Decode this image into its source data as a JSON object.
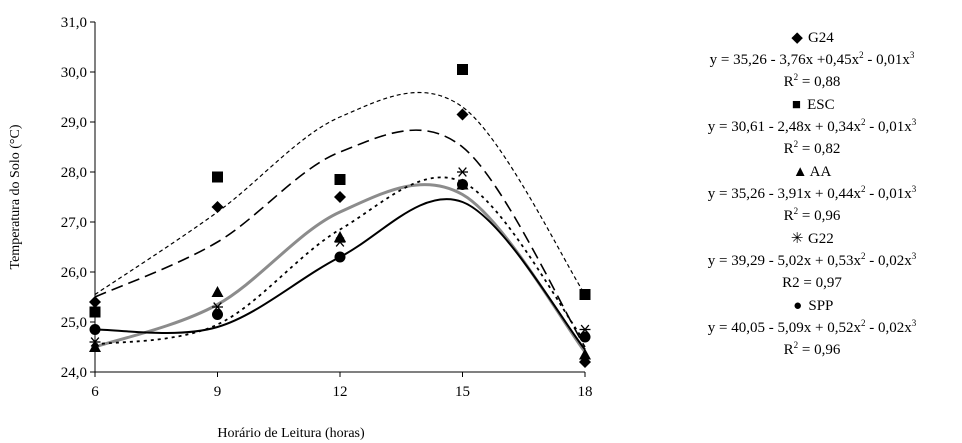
{
  "chart_data": {
    "type": "scatter",
    "xlabel": "Horário de Leitura (horas)",
    "ylabel": "Temperatura do Solo (°C)",
    "xlim": [
      6,
      18
    ],
    "ylim": [
      24.0,
      31.0
    ],
    "x_ticks": [
      "6",
      "9",
      "12",
      "15",
      "18"
    ],
    "y_ticks": [
      "24,0",
      "25,0",
      "26,0",
      "27,0",
      "28,0",
      "29,0",
      "30,0",
      "31,0"
    ],
    "x": [
      6,
      9,
      12,
      15,
      18
    ],
    "series": [
      {
        "name": "G24",
        "marker": "diamond",
        "line_style": "long-dash",
        "values": [
          25.4,
          27.3,
          27.5,
          29.15,
          24.2
        ],
        "curve": [
          25.5,
          26.6,
          28.4,
          28.5,
          24.5
        ],
        "equation": [
          "y = 35,26 - 3,76x +0,45x",
          "2",
          " - 0,01x",
          "3"
        ],
        "r2": [
          "R",
          "2",
          " = 0,88"
        ]
      },
      {
        "name": "ESC",
        "marker": "square",
        "line_style": "short-dash",
        "values": [
          25.2,
          27.9,
          27.85,
          30.05,
          25.55
        ],
        "curve": [
          25.55,
          27.2,
          29.1,
          29.3,
          25.55
        ],
        "equation": [
          "y = 30,61 - 2,48x + 0,34x",
          "2",
          " - 0,01x",
          "3"
        ],
        "r2": [
          "R",
          "2",
          " = 0,82"
        ]
      },
      {
        "name": "AA",
        "marker": "triangle",
        "line_style": "solid-gray",
        "values": [
          24.5,
          25.6,
          26.7,
          27.75,
          24.35
        ],
        "curve": [
          24.5,
          25.35,
          27.2,
          27.55,
          24.4
        ],
        "equation": [
          "y = 35,26 - 3,91x + 0,44x",
          "2",
          " - 0,01x",
          "3"
        ],
        "r2": [
          "R",
          "2",
          " = 0,96"
        ]
      },
      {
        "name": "G22",
        "marker": "asterisk",
        "line_style": "dotted",
        "values": [
          24.6,
          25.3,
          26.6,
          28.0,
          24.85
        ],
        "curve": [
          24.55,
          24.95,
          26.85,
          27.8,
          24.6
        ],
        "equation": [
          "y = 39,29 - 5,02x + 0,53x",
          "2",
          " - 0,02x",
          "3"
        ],
        "r2": [
          "R2 = 0,97"
        ]
      },
      {
        "name": "SPP",
        "marker": "circle",
        "line_style": "solid-black",
        "values": [
          24.85,
          25.15,
          26.3,
          27.75,
          24.7
        ],
        "curve": [
          24.85,
          24.9,
          26.3,
          27.4,
          24.45
        ],
        "equation": [
          "y = 40,05 - 5,09x + 0,52x",
          "2",
          " - 0,02x",
          "3"
        ],
        "r2": [
          "R",
          "2",
          " = 0,96"
        ]
      }
    ]
  },
  "legend": [
    {
      "symbol": "◆",
      "name": "G24"
    },
    {
      "symbol": "■",
      "name": "ESC"
    },
    {
      "symbol": "▲",
      "name": "AA"
    },
    {
      "symbol": "✳",
      "name": "G22"
    },
    {
      "symbol": "●",
      "name": "SPP"
    }
  ]
}
